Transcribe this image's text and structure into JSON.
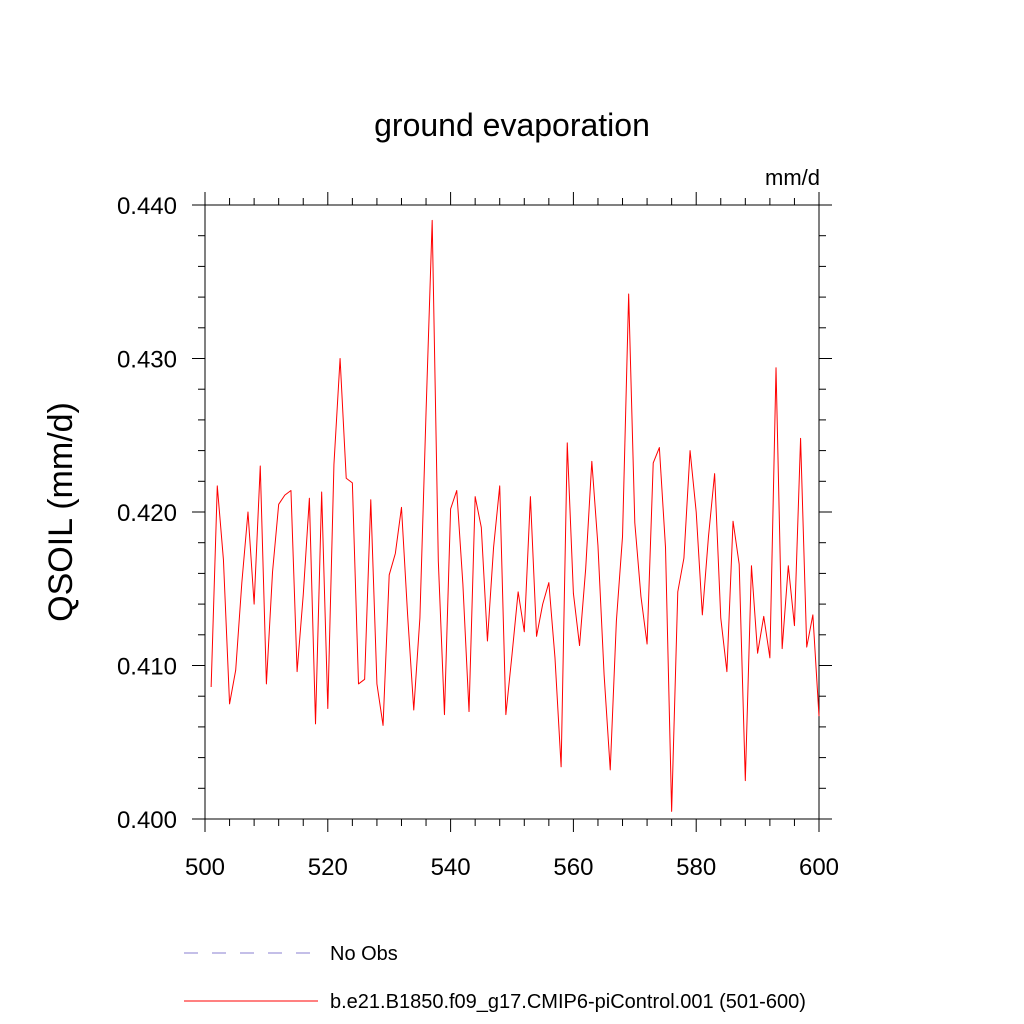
{
  "chart_data": {
    "type": "line",
    "title": "ground evaporation",
    "units": "mm/d",
    "ylabel": "QSOIL  (mm/d)",
    "xlabel": "",
    "xlim": [
      500,
      600
    ],
    "ylim": [
      0.4,
      0.44
    ],
    "x_ticks": [
      500,
      520,
      540,
      560,
      580,
      600
    ],
    "x_tick_labels": [
      "500",
      "520",
      "540",
      "560",
      "580",
      "600"
    ],
    "y_ticks": [
      0.4,
      0.41,
      0.42,
      0.43,
      0.44
    ],
    "y_tick_labels": [
      "0.400",
      "0.410",
      "0.420",
      "0.430",
      "0.440"
    ],
    "series": [
      {
        "name": "b.e21.B1850.f09_g17.CMIP6-piControl.001 (501-600)",
        "color": "#ff0000",
        "x_start": 501,
        "values": [
          0.4086,
          0.4217,
          0.4169,
          0.4075,
          0.4097,
          0.4154,
          0.42,
          0.414,
          0.423,
          0.4088,
          0.4161,
          0.4205,
          0.4211,
          0.4214,
          0.4096,
          0.4146,
          0.4209,
          0.4062,
          0.4213,
          0.4072,
          0.4231,
          0.43,
          0.4222,
          0.4219,
          0.4088,
          0.4091,
          0.4208,
          0.4088,
          0.4061,
          0.4159,
          0.4173,
          0.4203,
          0.4133,
          0.4071,
          0.4131,
          0.4265,
          0.439,
          0.4168,
          0.4068,
          0.4202,
          0.4214,
          0.4153,
          0.407,
          0.421,
          0.419,
          0.4116,
          0.4177,
          0.4217,
          0.4068,
          0.4107,
          0.4148,
          0.4122,
          0.421,
          0.4119,
          0.414,
          0.4154,
          0.4105,
          0.4034,
          0.4245,
          0.4147,
          0.4113,
          0.4163,
          0.4233,
          0.4178,
          0.4094,
          0.4032,
          0.4129,
          0.4184,
          0.4342,
          0.4193,
          0.4145,
          0.4114,
          0.4232,
          0.4242,
          0.4177,
          0.4005,
          0.4148,
          0.417,
          0.424,
          0.42,
          0.4133,
          0.4184,
          0.4225,
          0.4131,
          0.4096,
          0.4194,
          0.4166,
          0.4025,
          0.4165,
          0.4108,
          0.4132,
          0.4105,
          0.4294,
          0.4111,
          0.4165,
          0.4126,
          0.4248,
          0.4112,
          0.4133,
          0.4067
        ]
      }
    ],
    "legend": [
      {
        "label": "No Obs",
        "color": "#8a7fd0",
        "style": "dashed"
      },
      {
        "label": "b.e21.B1850.f09_g17.CMIP6-piControl.001 (501-600)",
        "color": "#ff0000",
        "style": "solid"
      }
    ]
  }
}
